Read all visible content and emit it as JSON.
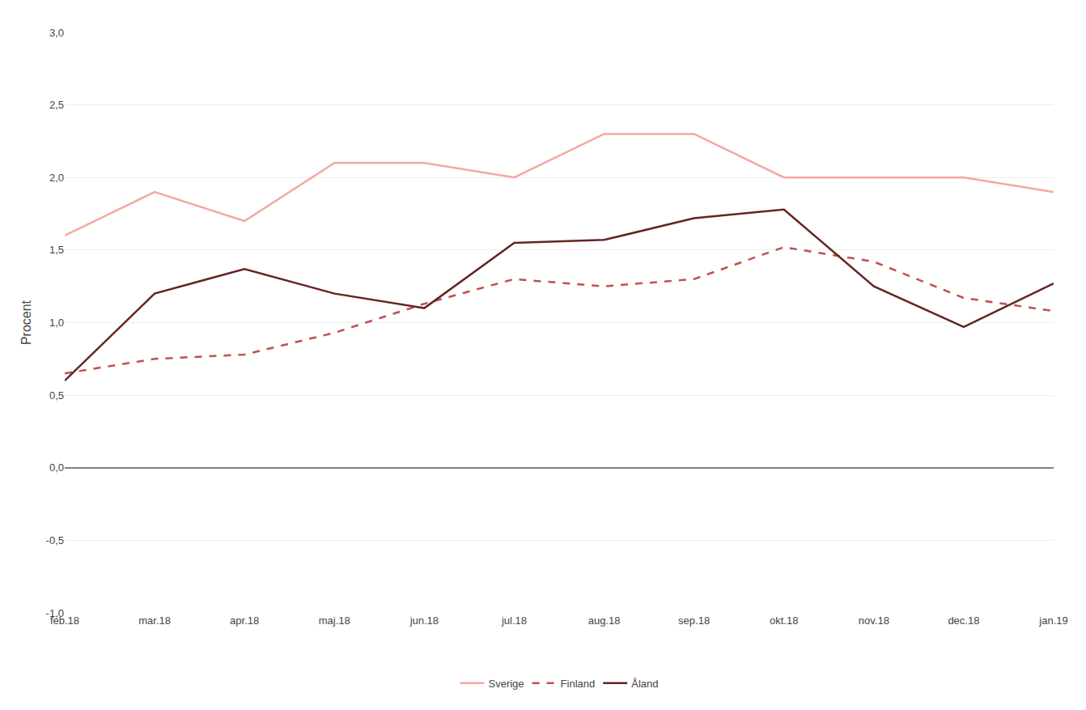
{
  "chart_data": {
    "type": "line",
    "ylabel": "Procent",
    "categories": [
      "feb.18",
      "mar.18",
      "apr.18",
      "maj.18",
      "jun.18",
      "jul.18",
      "aug.18",
      "sep.18",
      "okt.18",
      "nov.18",
      "dec.18",
      "jan.19"
    ],
    "series": [
      {
        "name": "Sverige",
        "color": "#f4a8a0",
        "line_style": "solid",
        "values": [
          1.6,
          1.9,
          1.7,
          2.1,
          2.1,
          2.0,
          2.3,
          2.3,
          2.0,
          2.0,
          2.0,
          1.9
        ]
      },
      {
        "name": "Finland",
        "color": "#c0504d",
        "line_style": "dashed",
        "values": [
          0.65,
          0.75,
          0.78,
          0.93,
          1.13,
          1.3,
          1.25,
          1.3,
          1.52,
          1.42,
          1.17,
          1.08
        ]
      },
      {
        "name": "Åland",
        "color": "#632523",
        "line_style": "solid",
        "values": [
          0.6,
          1.2,
          1.37,
          1.2,
          1.1,
          1.55,
          1.57,
          1.72,
          1.78,
          1.25,
          0.97,
          1.27
        ]
      }
    ],
    "ylim": [
      -1.0,
      3.0
    ],
    "yticks": [
      {
        "value": -1.0,
        "label": "-1,0"
      },
      {
        "value": -0.5,
        "label": "-0,5"
      },
      {
        "value": 0.0,
        "label": "0,0"
      },
      {
        "value": 0.5,
        "label": "0,5"
      },
      {
        "value": 1.0,
        "label": "1,0"
      },
      {
        "value": 1.5,
        "label": "1,5"
      },
      {
        "value": 2.0,
        "label": "2,0"
      },
      {
        "value": 2.5,
        "label": "2,5"
      },
      {
        "value": 3.0,
        "label": "3,0"
      }
    ],
    "grid": true,
    "legend": "bottom"
  }
}
